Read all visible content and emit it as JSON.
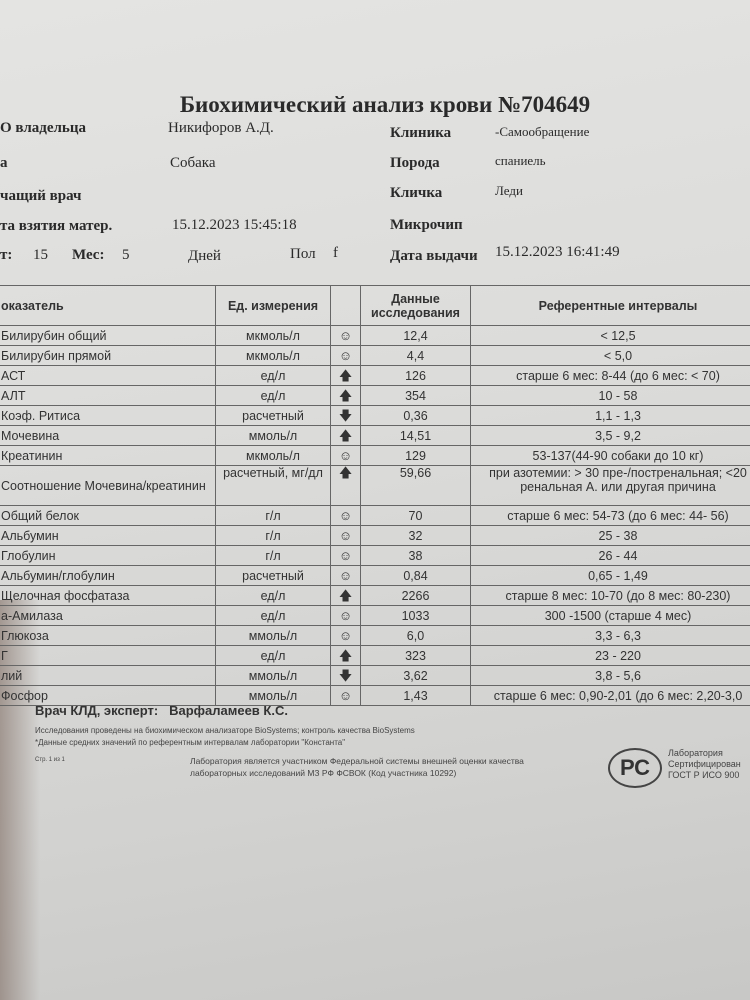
{
  "header": {
    "title": "Биохимический анализ крови №704649",
    "owner_label": "О владельца",
    "owner": "Никифоров А.Д.",
    "clinic_label": "Клиника",
    "clinic": "-Самообращение",
    "species_label": "а",
    "species": "Собака",
    "breed_label": "Порода",
    "breed": "спаниель",
    "doctor_label": "чащий врач",
    "name_label": "Кличка",
    "name": "Леди",
    "sample_date_label": "та взятия матер.",
    "sample_date": "15.12.2023 15:45:18",
    "chip_label": "Микрочип",
    "age_years_label": "т:",
    "age_years": "15",
    "age_months_label": "Мес:",
    "age_months": "5",
    "days_label": "Дней",
    "sex_label": "Пол",
    "sex": "f",
    "issue_label": "Дата выдачи",
    "issue_date": "15.12.2023 16:41:49"
  },
  "table": {
    "headers": [
      "оказатель",
      "Ед. измерения",
      "",
      "Данные исследования",
      "Референтные интервалы"
    ],
    "rows": [
      {
        "name": "Билирубин общий",
        "unit": "мкмоль/л",
        "flag": "normal",
        "value": "12,4",
        "ref": "< 12,5"
      },
      {
        "name": "Билирубин прямой",
        "unit": "мкмоль/л",
        "flag": "normal",
        "value": "4,4",
        "ref": "< 5,0"
      },
      {
        "name": "АСТ",
        "unit": "ед/л",
        "flag": "high",
        "value": "126",
        "ref": "старше 6 мес: 8-44 (до 6 мес: < 70)"
      },
      {
        "name": "АЛТ",
        "unit": "ед/л",
        "flag": "high",
        "value": "354",
        "ref": "10 - 58"
      },
      {
        "name": "Коэф. Ритиса",
        "unit": "расчетный",
        "flag": "low",
        "value": "0,36",
        "ref": "1,1 - 1,3"
      },
      {
        "name": "Мочевина",
        "unit": "ммоль/л",
        "flag": "high",
        "value": "14,51",
        "ref": "3,5 - 9,2"
      },
      {
        "name": "Креатинин",
        "unit": "мкмоль/л",
        "flag": "normal",
        "value": "129",
        "ref": "53-137(44-90 собаки до 10 кг)"
      },
      {
        "name": "Соотношение Мочевина/креатинин",
        "unit": "расчетный, мг/дл",
        "flag": "high",
        "value": "59,66",
        "ref": "при азотемии: > 30 пре-/постренальная; <20 ренальная А. или другая причина"
      },
      {
        "name": "Общий белок",
        "unit": "г/л",
        "flag": "normal",
        "value": "70",
        "ref": "старше 6 мес: 54-73 (до 6 мес: 44- 56)"
      },
      {
        "name": "Альбумин",
        "unit": "г/л",
        "flag": "normal",
        "value": "32",
        "ref": "25 - 38"
      },
      {
        "name": "Глобулин",
        "unit": "г/л",
        "flag": "normal",
        "value": "38",
        "ref": "26 - 44"
      },
      {
        "name": "Альбумин/глобулин",
        "unit": "расчетный",
        "flag": "normal",
        "value": "0,84",
        "ref": "0,65 - 1,49"
      },
      {
        "name": "Щелочная фосфатаза",
        "unit": "ед/л",
        "flag": "high",
        "value": "2266",
        "ref": "старше 8 мес: 10-70 (до 8 мес: 80-230)"
      },
      {
        "name": "а-Амилаза",
        "unit": "ед/л",
        "flag": "normal",
        "value": "1033",
        "ref": "300 -1500 (старше 4 мес)"
      },
      {
        "name": "Глюкоза",
        "unit": "ммоль/л",
        "flag": "normal",
        "value": "6,0",
        "ref": "3,3 - 6,3"
      },
      {
        "name": "Г",
        "unit": "ед/л",
        "flag": "high",
        "value": "323",
        "ref": "23 - 220"
      },
      {
        "name": "лий",
        "unit": "ммоль/л",
        "flag": "low",
        "value": "3,62",
        "ref": "3,8 - 5,6"
      },
      {
        "name": "Фосфор",
        "unit": "ммоль/л",
        "flag": "normal",
        "value": "1,43",
        "ref": "старше 6 мес: 0,90-2,01 (до 6 мес: 2,20-3,0"
      }
    ]
  },
  "icons": {
    "normal": "☺",
    "high": "🡅",
    "low": "🡇"
  },
  "footer": {
    "expert_label": "Врач КЛД, эксперт:",
    "expert": "Варфаламеев К.С.",
    "note1": "Исследования проведены на биохимическом анализаторе BioSystems; контроль качества BioSystems",
    "note2": "*Данные средних значений по референтным интервалам лаборатории \"Константа\"",
    "page": "Стр. 1 из 1",
    "fsvok1": "Лаборатория является участником Федеральной системы внешней оценки качества",
    "fsvok2": "лабораторных исследований МЗ РФ ФСВОК (Код участника 10292)",
    "logo_text": "РС",
    "cert1": "Лаборатория",
    "cert2": "Сертифицирован",
    "cert3": "ГОСТ Р ИСО 900"
  }
}
